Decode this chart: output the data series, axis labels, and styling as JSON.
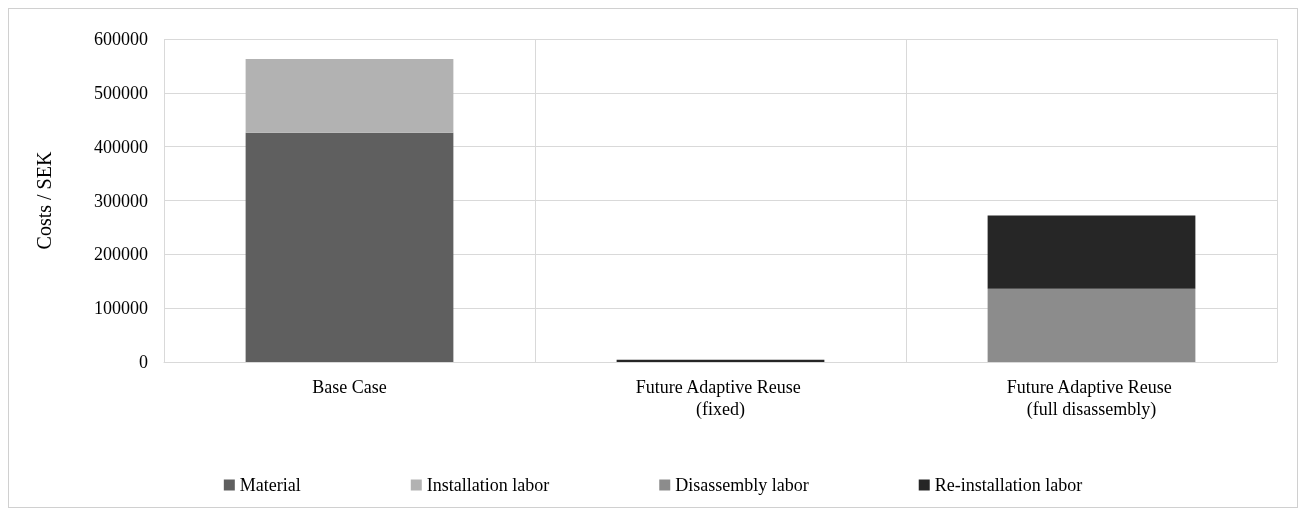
{
  "chart_data": {
    "type": "bar",
    "stacked": true,
    "ylabel": "Costs / SEK",
    "categories": [
      "Base Case",
      "Future Adaptive Reuse (fixed)",
      "Future Adaptive Reuse (full disassembly)"
    ],
    "series": [
      {
        "name": "Material",
        "color": "#5f5f5f",
        "values": [
          426000,
          0,
          0
        ]
      },
      {
        "name": "Installation labor",
        "color": "#b2b2b2",
        "values": [
          137000,
          0,
          0
        ]
      },
      {
        "name": "Disassembly labor",
        "color": "#8c8c8c",
        "values": [
          0,
          0,
          136000
        ]
      },
      {
        "name": "Re-installation labor",
        "color": "#262626",
        "values": [
          0,
          4000,
          136000
        ]
      }
    ],
    "ylim": [
      0,
      600000
    ],
    "yticks": [
      0,
      100000,
      200000,
      300000,
      400000,
      500000,
      600000
    ],
    "grid": true,
    "legend": "bottom"
  }
}
